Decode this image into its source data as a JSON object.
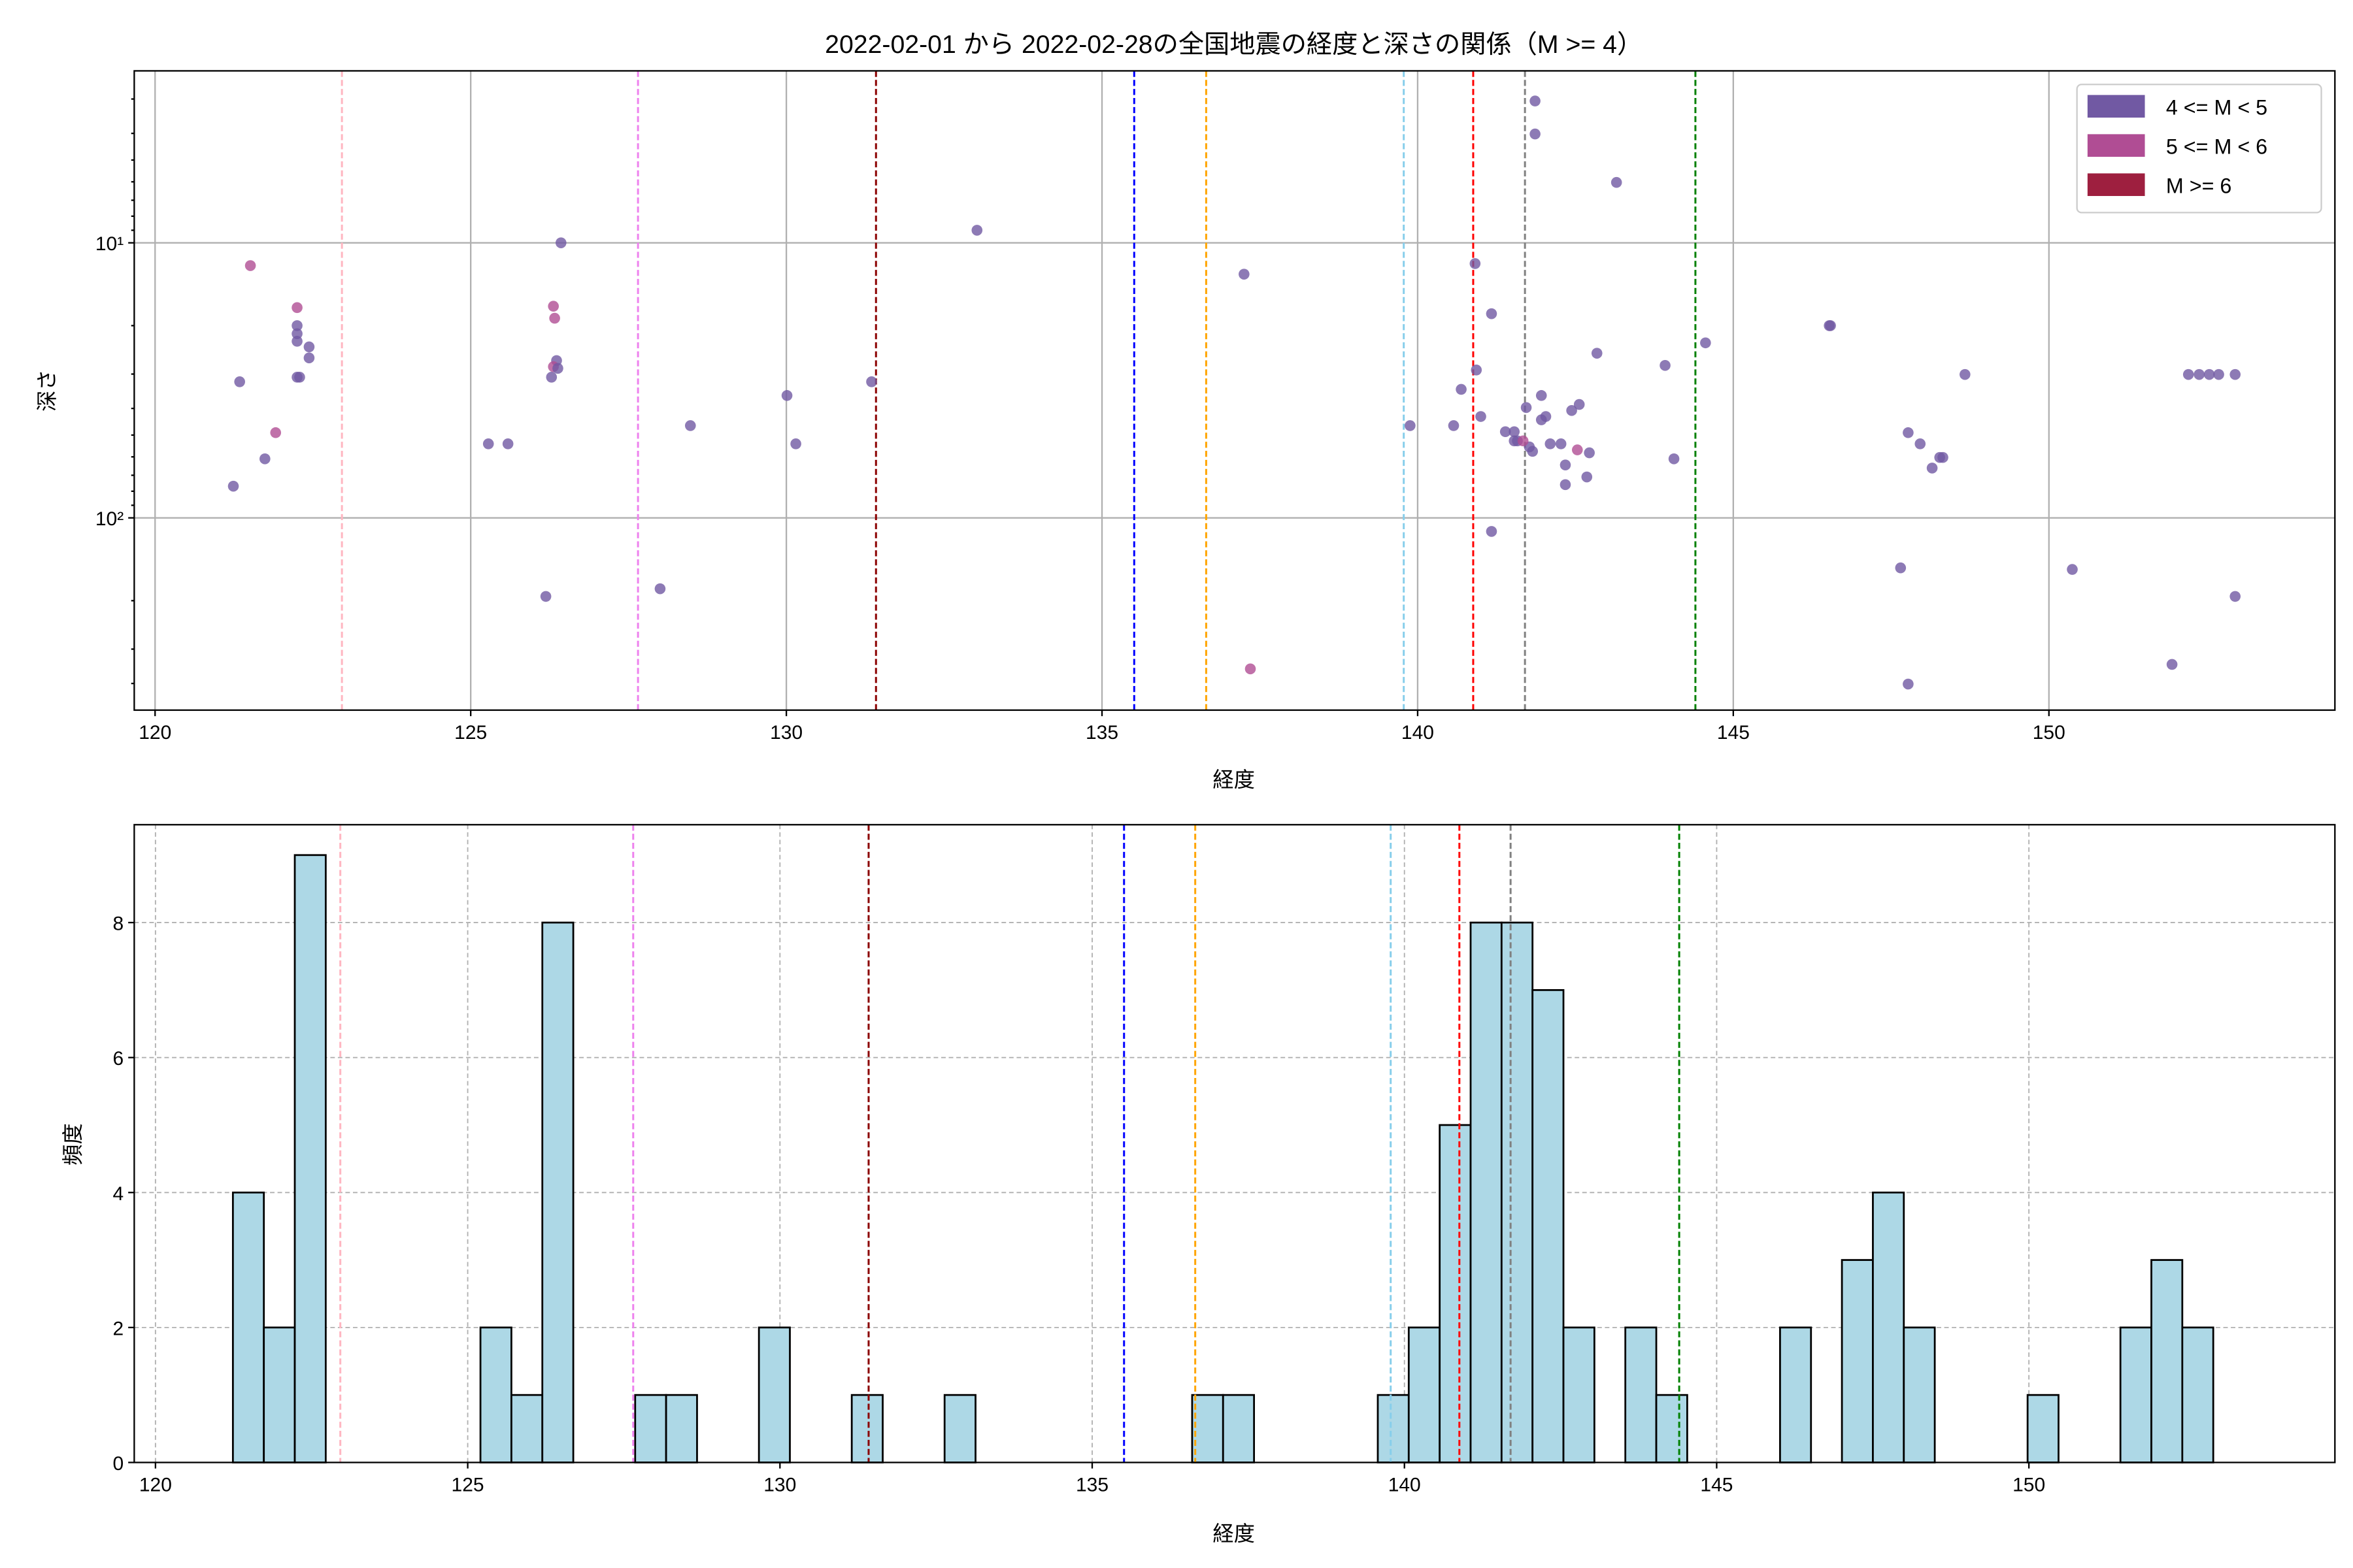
{
  "chart_data": [
    {
      "type": "scatter",
      "title": "2022-02-01 から 2022-02-28の全国地震の経度と深さの関係（M >= 4）",
      "xlabel": "経度",
      "ylabel": "深さ",
      "xlim": [
        119.67,
        154.53
      ],
      "ylim": [
        500,
        2.37
      ],
      "yscale": "log",
      "y_inverted": true,
      "grid": true,
      "xticks": [
        120,
        125,
        130,
        135,
        140,
        145,
        150
      ],
      "yticks": [
        {
          "value": 10,
          "label": "10¹"
        },
        {
          "value": 100,
          "label": "10²"
        }
      ],
      "legend": {
        "placement": "top-right",
        "entries": [
          {
            "label": "4 <= M < 5",
            "color": "#7159a3"
          },
          {
            "label": "5 <= M < 6",
            "color": "#b04d94"
          },
          {
            "label": "M >= 6",
            "color": "#9e1f3f"
          }
        ]
      },
      "points": [
        [
          121.51,
          12.1,
          1
        ],
        [
          121.34,
          32,
          0
        ],
        [
          121.24,
          76.7,
          0
        ],
        [
          121.74,
          61,
          0
        ],
        [
          121.91,
          49,
          1
        ],
        [
          122.25,
          17.2,
          1
        ],
        [
          122.25,
          20,
          0
        ],
        [
          122.25,
          21.4,
          0
        ],
        [
          122.25,
          22.8,
          0
        ],
        [
          122.44,
          23.9,
          0
        ],
        [
          122.44,
          26.2,
          0
        ],
        [
          122.25,
          30.8,
          0
        ],
        [
          122.29,
          30.8,
          0
        ],
        [
          125.28,
          53.8,
          0
        ],
        [
          125.59,
          53.8,
          0
        ],
        [
          126.43,
          10,
          0
        ],
        [
          126.31,
          17,
          1
        ],
        [
          126.33,
          18.8,
          1
        ],
        [
          126.36,
          26.8,
          0
        ],
        [
          126.31,
          28.2,
          1
        ],
        [
          126.28,
          30.8,
          0
        ],
        [
          126.38,
          28.6,
          0
        ],
        [
          126.19,
          193,
          0
        ],
        [
          128.0,
          181,
          0
        ],
        [
          128.48,
          46.2,
          0
        ],
        [
          130.01,
          35.9,
          0
        ],
        [
          130.15,
          53.8,
          0
        ],
        [
          131.35,
          32,
          0
        ],
        [
          133.02,
          9.0,
          0
        ],
        [
          137.25,
          13.0,
          0
        ],
        [
          137.35,
          354,
          1
        ],
        [
          140.91,
          11.9,
          0
        ],
        [
          141.17,
          18.1,
          0
        ],
        [
          140.93,
          29,
          0
        ],
        [
          139.88,
          46.2,
          0
        ],
        [
          140.69,
          34.1,
          0
        ],
        [
          141.0,
          42.8,
          0
        ],
        [
          140.57,
          46.2,
          0
        ],
        [
          141.39,
          48.6,
          0
        ],
        [
          141.53,
          52.5,
          0
        ],
        [
          141.72,
          39.7,
          0
        ],
        [
          141.77,
          55.2,
          0
        ],
        [
          141.82,
          57.3,
          0
        ],
        [
          141.96,
          35.9,
          0
        ],
        [
          141.96,
          44,
          0
        ],
        [
          142.03,
          42.8,
          0
        ],
        [
          142.1,
          53.8,
          0
        ],
        [
          141.58,
          52.5,
          0
        ],
        [
          142.27,
          53.8,
          0
        ],
        [
          142.34,
          64.2,
          0
        ],
        [
          142.34,
          75.7,
          0
        ],
        [
          142.68,
          71,
          0
        ],
        [
          142.72,
          58,
          0
        ],
        [
          142.44,
          40.7,
          0
        ],
        [
          142.56,
          38.7,
          0
        ],
        [
          141.67,
          52.5,
          1
        ],
        [
          142.53,
          56.6,
          1
        ],
        [
          141.53,
          48.6,
          0
        ],
        [
          142.84,
          25.2,
          0
        ],
        [
          143.15,
          6.03,
          0
        ],
        [
          141.86,
          3.05,
          0
        ],
        [
          141.86,
          4.02,
          0
        ],
        [
          143.92,
          27.9,
          0
        ],
        [
          144.06,
          61,
          0
        ],
        [
          144.56,
          23.1,
          0
        ],
        [
          141.17,
          112,
          0
        ],
        [
          146.52,
          20,
          0
        ],
        [
          146.54,
          20,
          0
        ],
        [
          147.77,
          49,
          0
        ],
        [
          147.96,
          53.8,
          0
        ],
        [
          148.15,
          65.9,
          0
        ],
        [
          148.27,
          60.3,
          0
        ],
        [
          148.32,
          60.3,
          0
        ],
        [
          148.67,
          30.1,
          0
        ],
        [
          147.65,
          152,
          0
        ],
        [
          147.77,
          402,
          0
        ],
        [
          150.37,
          154,
          0
        ],
        [
          151.95,
          341,
          0
        ],
        [
          152.21,
          30.1,
          0
        ],
        [
          152.38,
          30.1,
          0
        ],
        [
          152.54,
          30.1,
          0
        ],
        [
          152.69,
          30.1,
          0
        ],
        [
          152.95,
          30.1,
          0
        ],
        [
          152.95,
          193,
          0
        ]
      ]
    },
    {
      "type": "bar",
      "subtype": "histogram",
      "xlabel": "経度",
      "ylabel": "頻度",
      "xlim": [
        119.66,
        154.9
      ],
      "ylim": [
        0,
        9.45
      ],
      "grid": true,
      "xticks": [
        120,
        125,
        130,
        135,
        140,
        145,
        150
      ],
      "yticks": [
        0,
        2,
        4,
        6,
        8
      ],
      "bar_color": "#add8e6",
      "bin_start": 121.24,
      "bin_width": 0.4955,
      "counts": [
        4,
        2,
        9,
        0,
        0,
        0,
        0,
        0,
        2,
        1,
        8,
        0,
        0,
        1,
        1,
        0,
        0,
        2,
        0,
        0,
        1,
        0,
        0,
        1,
        0,
        0,
        0,
        0,
        0,
        0,
        0,
        1,
        1,
        0,
        0,
        0,
        0,
        1,
        2,
        5,
        8,
        8,
        7,
        2,
        0,
        2,
        1,
        0,
        0,
        0,
        2,
        0,
        3,
        4,
        2,
        0,
        0,
        0,
        1,
        0,
        0,
        2,
        3,
        2
      ]
    }
  ],
  "reference_lines": [
    {
      "lon": 122.96,
      "color": "#ffb6c1"
    },
    {
      "lon": 127.65,
      "color": "#ee82ee"
    },
    {
      "lon": 131.42,
      "color": "#8b0000"
    },
    {
      "lon": 135.51,
      "color": "#0000ff"
    },
    {
      "lon": 136.65,
      "color": "#ffa500"
    },
    {
      "lon": 139.78,
      "color": "#87ceeb"
    },
    {
      "lon": 140.88,
      "color": "#ff0000"
    },
    {
      "lon": 141.7,
      "color": "#808080"
    },
    {
      "lon": 144.4,
      "color": "#008000"
    }
  ]
}
